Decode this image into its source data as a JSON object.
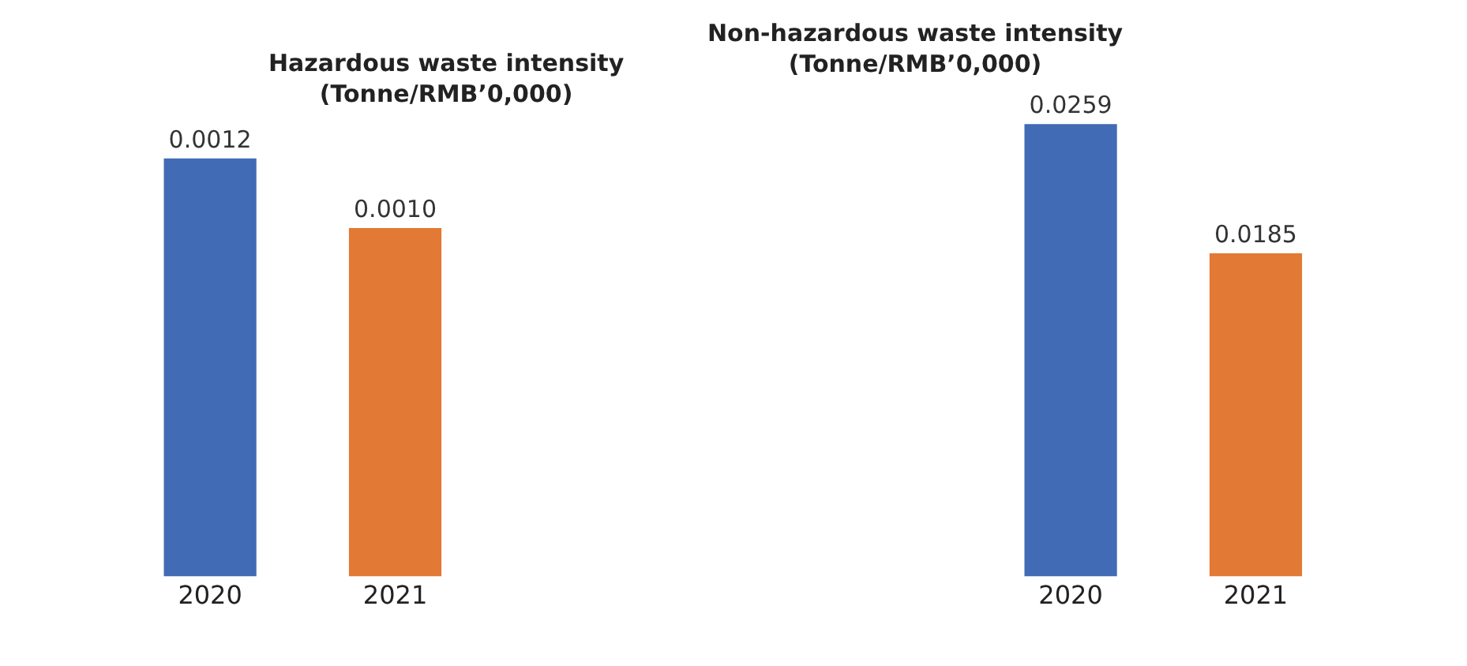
{
  "chart_data": [
    {
      "type": "bar",
      "title": "Hazardous waste intensity\n(Tonne/RMB’0,000)",
      "categories": [
        "2020",
        "2021"
      ],
      "values": [
        0.0012,
        0.001
      ],
      "value_labels": [
        "0.0012",
        "0.0010"
      ],
      "colors": [
        "#416bb4",
        "#e27934"
      ],
      "tick_labels": "x"
    },
    {
      "type": "bar",
      "title": "Non-hazardous waste intensity\n(Tonne/RMB’0,000)",
      "categories": [
        "2020",
        "2021"
      ],
      "values": [
        0.0259,
        0.0185
      ],
      "value_labels": [
        "0.0259",
        "0.0185"
      ],
      "colors": [
        "#416bb4",
        "#e27934"
      ],
      "tick_labels": "x"
    }
  ]
}
